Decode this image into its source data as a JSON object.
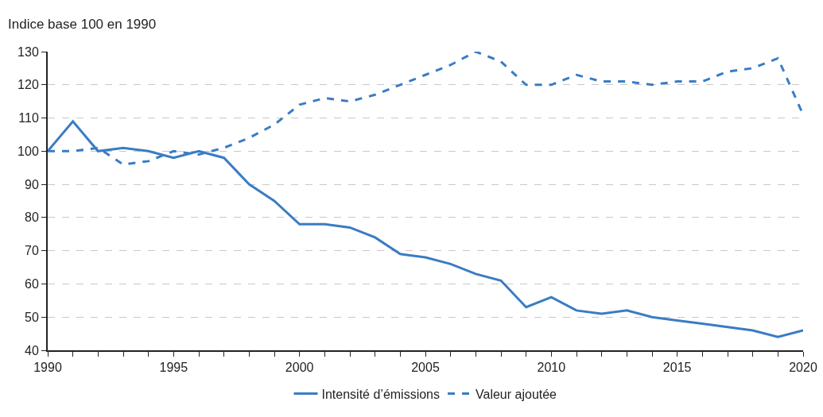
{
  "chart_data": {
    "type": "line",
    "ylabel": "Indice base 100 en 1990",
    "x": [
      1990,
      1991,
      1992,
      1993,
      1994,
      1995,
      1996,
      1997,
      1998,
      1999,
      2000,
      2001,
      2002,
      2003,
      2004,
      2005,
      2006,
      2007,
      2008,
      2009,
      2010,
      2011,
      2012,
      2013,
      2014,
      2015,
      2016,
      2017,
      2018,
      2019,
      2020
    ],
    "series": [
      {
        "name": "Intensité d’émissions",
        "color": "#3a7cc4",
        "line_style": "solid",
        "values": [
          100,
          109,
          100,
          101,
          100,
          98,
          100,
          98,
          90,
          85,
          78,
          78,
          77,
          74,
          69,
          68,
          66,
          63,
          61,
          53,
          56,
          52,
          51,
          52,
          50,
          49,
          48,
          47,
          46,
          44,
          46
        ]
      },
      {
        "name": "Valeur ajoutée",
        "color": "#3a7cc4",
        "line_style": "dashed",
        "values": [
          100,
          100,
          101,
          96,
          97,
          100,
          99,
          101,
          104,
          108,
          114,
          116,
          115,
          117,
          120,
          123,
          126,
          130,
          127,
          120,
          120,
          123,
          121,
          121,
          120,
          121,
          121,
          124,
          125,
          128,
          111
        ]
      }
    ],
    "xlim": [
      1990,
      2020
    ],
    "xticks": [
      1990,
      {
        "value": 1991,
        "label": null
      },
      {
        "value": 1992,
        "label": null
      },
      {
        "value": 1993,
        "label": null
      },
      {
        "value": 1994,
        "label": null
      },
      1995,
      {
        "value": 1996,
        "label": null
      },
      {
        "value": 1997,
        "label": null
      },
      {
        "value": 1998,
        "label": null
      },
      {
        "value": 1999,
        "label": null
      },
      2000,
      {
        "value": 2001,
        "label": null
      },
      {
        "value": 2002,
        "label": null
      },
      {
        "value": 2003,
        "label": null
      },
      {
        "value": 2004,
        "label": null
      },
      2005,
      {
        "value": 2006,
        "label": null
      },
      {
        "value": 2007,
        "label": null
      },
      {
        "value": 2008,
        "label": null
      },
      {
        "value": 2009,
        "label": null
      },
      2010,
      {
        "value": 2011,
        "label": null
      },
      {
        "value": 2012,
        "label": null
      },
      {
        "value": 2013,
        "label": null
      },
      {
        "value": 2014,
        "label": null
      },
      2015,
      {
        "value": 2016,
        "label": null
      },
      {
        "value": 2017,
        "label": null
      },
      {
        "value": 2018,
        "label": null
      },
      {
        "value": 2019,
        "label": null
      },
      2020
    ],
    "ylim": [
      40,
      130
    ],
    "yticks": [
      40,
      50,
      60,
      70,
      80,
      90,
      100,
      110,
      120,
      130
    ],
    "grid": "y",
    "legend": "bottom",
    "marker": "none"
  }
}
